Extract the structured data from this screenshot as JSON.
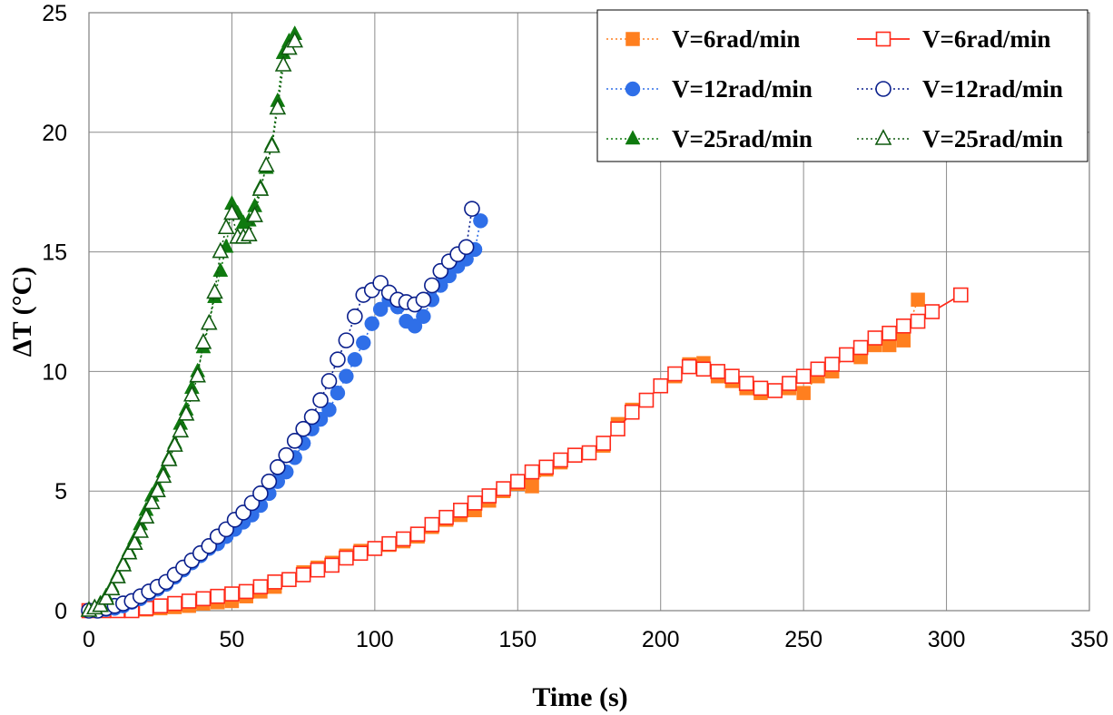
{
  "chart_data": {
    "type": "scatter",
    "title": "",
    "xlabel": "Time (s)",
    "ylabel": "ΔT (°C)",
    "xlim": [
      0,
      350
    ],
    "ylim": [
      0,
      25
    ],
    "xticks": [
      "0",
      "50",
      "100",
      "150",
      "200",
      "250",
      "300",
      "350"
    ],
    "yticks": [
      "0",
      "5",
      "10",
      "15",
      "20",
      "25"
    ],
    "grid": true,
    "legend_position": "top-right",
    "series": [
      {
        "name": "V=6rad/min",
        "color": "#ff7f1f",
        "marker": "square",
        "filled": true,
        "line": "dotted",
        "x": [
          0,
          5,
          10,
          15,
          20,
          25,
          30,
          35,
          40,
          45,
          50,
          55,
          60,
          65,
          70,
          75,
          80,
          85,
          90,
          95,
          100,
          105,
          110,
          115,
          120,
          125,
          130,
          135,
          140,
          145,
          150,
          155,
          160,
          165,
          170,
          175,
          180,
          185,
          190,
          195,
          200,
          205,
          210,
          215,
          220,
          225,
          230,
          235,
          240,
          245,
          250,
          255,
          260,
          265,
          270,
          275,
          280,
          285,
          290
        ],
        "y": [
          0,
          0,
          0,
          0,
          0.05,
          0.1,
          0.15,
          0.2,
          0.3,
          0.35,
          0.4,
          0.6,
          0.8,
          1.0,
          1.3,
          1.6,
          1.8,
          2.0,
          2.3,
          2.5,
          2.6,
          2.75,
          2.9,
          3.1,
          3.5,
          3.8,
          4.0,
          4.2,
          4.6,
          5.0,
          5.3,
          5.2,
          5.9,
          6.2,
          6.5,
          6.6,
          6.9,
          7.8,
          8.4,
          8.8,
          9.4,
          9.8,
          10.3,
          10.35,
          9.8,
          9.6,
          9.3,
          9.1,
          9.2,
          9.3,
          9.1,
          9.8,
          10.0,
          10.7,
          10.6,
          11.1,
          11.1,
          11.3,
          13.0
        ]
      },
      {
        "name": "V=6rad/min",
        "color": "#ff2a1a",
        "marker": "square",
        "filled": false,
        "line": "solid",
        "x": [
          0,
          5,
          10,
          15,
          20,
          25,
          30,
          35,
          40,
          45,
          50,
          55,
          60,
          65,
          70,
          75,
          80,
          85,
          90,
          95,
          100,
          105,
          110,
          115,
          120,
          125,
          130,
          135,
          140,
          145,
          150,
          155,
          160,
          165,
          170,
          175,
          180,
          185,
          190,
          195,
          200,
          205,
          210,
          215,
          220,
          225,
          230,
          235,
          240,
          245,
          250,
          255,
          260,
          265,
          270,
          275,
          280,
          285,
          290,
          295,
          305
        ],
        "y": [
          0,
          0,
          0,
          0,
          0.1,
          0.2,
          0.3,
          0.4,
          0.5,
          0.6,
          0.7,
          0.8,
          1.0,
          1.2,
          1.3,
          1.5,
          1.7,
          1.9,
          2.2,
          2.4,
          2.6,
          2.8,
          3.0,
          3.2,
          3.6,
          3.9,
          4.2,
          4.5,
          4.8,
          5.1,
          5.4,
          5.8,
          6.0,
          6.3,
          6.5,
          6.6,
          7.0,
          7.6,
          8.3,
          8.8,
          9.4,
          9.9,
          10.2,
          10.1,
          10.0,
          9.8,
          9.5,
          9.3,
          9.2,
          9.5,
          9.8,
          10.1,
          10.3,
          10.7,
          11.0,
          11.4,
          11.6,
          11.9,
          12.1,
          12.5,
          13.2
        ]
      },
      {
        "name": "V=12rad/min",
        "color": "#2f6fe8",
        "marker": "circle",
        "filled": true,
        "line": "dotted",
        "x": [
          0,
          3,
          6,
          9,
          12,
          15,
          18,
          21,
          24,
          27,
          30,
          33,
          36,
          39,
          42,
          45,
          48,
          51,
          54,
          57,
          60,
          63,
          66,
          69,
          72,
          75,
          78,
          81,
          84,
          87,
          90,
          93,
          96,
          99,
          102,
          105,
          108,
          111,
          114,
          117,
          120,
          123,
          126,
          129,
          132,
          135,
          137
        ],
        "y": [
          0,
          0,
          0.05,
          0.1,
          0.2,
          0.35,
          0.5,
          0.7,
          0.9,
          1.1,
          1.4,
          1.7,
          2.0,
          2.3,
          2.6,
          2.8,
          3.1,
          3.4,
          3.7,
          4.0,
          4.4,
          4.9,
          5.4,
          5.8,
          6.4,
          7.0,
          7.6,
          8.0,
          8.4,
          9.1,
          9.8,
          10.5,
          11.2,
          12.0,
          12.6,
          13.0,
          12.7,
          12.1,
          11.9,
          12.3,
          13.0,
          13.6,
          14.0,
          14.4,
          14.7,
          15.1,
          16.3
        ]
      },
      {
        "name": "V=12rad/min",
        "color": "#0a1f8c",
        "marker": "circle",
        "filled": false,
        "line": "dotted",
        "x": [
          0,
          3,
          6,
          9,
          12,
          15,
          18,
          21,
          24,
          27,
          30,
          33,
          36,
          39,
          42,
          45,
          48,
          51,
          54,
          57,
          60,
          63,
          66,
          69,
          72,
          75,
          78,
          81,
          84,
          87,
          90,
          93,
          96,
          99,
          102,
          105,
          108,
          111,
          114,
          117,
          120,
          123,
          126,
          129,
          132,
          134
        ],
        "y": [
          0,
          0,
          0.1,
          0.2,
          0.3,
          0.4,
          0.6,
          0.8,
          1.0,
          1.2,
          1.5,
          1.8,
          2.1,
          2.4,
          2.7,
          3.1,
          3.4,
          3.8,
          4.1,
          4.5,
          4.9,
          5.4,
          6.0,
          6.5,
          7.1,
          7.6,
          8.1,
          8.8,
          9.6,
          10.5,
          11.3,
          12.3,
          13.2,
          13.4,
          13.7,
          13.3,
          13.0,
          12.9,
          12.8,
          13.0,
          13.6,
          14.2,
          14.6,
          14.9,
          15.2,
          16.8
        ]
      },
      {
        "name": "V=25rad/min",
        "color": "#0f7a0f",
        "marker": "triangle",
        "filled": true,
        "line": "dotted",
        "x": [
          0,
          2,
          4,
          6,
          8,
          10,
          12,
          14,
          16,
          18,
          20,
          22,
          24,
          26,
          28,
          30,
          32,
          34,
          36,
          38,
          40,
          42,
          44,
          46,
          48,
          50,
          52,
          54,
          56,
          58,
          60,
          62,
          64,
          66,
          68,
          70,
          72
        ],
        "y": [
          0,
          0.1,
          0.3,
          0.6,
          1.0,
          1.5,
          2.0,
          2.5,
          3.0,
          3.6,
          4.2,
          4.8,
          5.2,
          5.8,
          6.4,
          7.0,
          7.8,
          8.4,
          9.3,
          10.0,
          11.0,
          12.0,
          13.1,
          14.2,
          15.2,
          17.0,
          16.6,
          16.2,
          16.3,
          16.9,
          17.7,
          18.5,
          19.5,
          21.3,
          23.3,
          23.8,
          24.1
        ]
      },
      {
        "name": "V=25rad/min",
        "color": "#0f5a0f",
        "marker": "triangle",
        "filled": false,
        "line": "dotted",
        "x": [
          0,
          2,
          4,
          6,
          8,
          10,
          12,
          14,
          16,
          18,
          20,
          22,
          24,
          26,
          28,
          30,
          32,
          34,
          36,
          38,
          40,
          42,
          44,
          46,
          48,
          50,
          52,
          54,
          56,
          58,
          60,
          62,
          64,
          66,
          68,
          70,
          72
        ],
        "y": [
          0,
          0.1,
          0.2,
          0.5,
          0.9,
          1.4,
          1.9,
          2.4,
          2.8,
          3.3,
          3.9,
          4.5,
          5.0,
          5.6,
          6.3,
          6.9,
          7.5,
          8.2,
          9.0,
          9.8,
          11.2,
          12.0,
          13.3,
          15.0,
          16.0,
          16.6,
          15.6,
          15.6,
          15.7,
          16.5,
          17.6,
          18.6,
          19.4,
          21.0,
          22.8,
          23.5,
          23.8
        ]
      }
    ]
  }
}
